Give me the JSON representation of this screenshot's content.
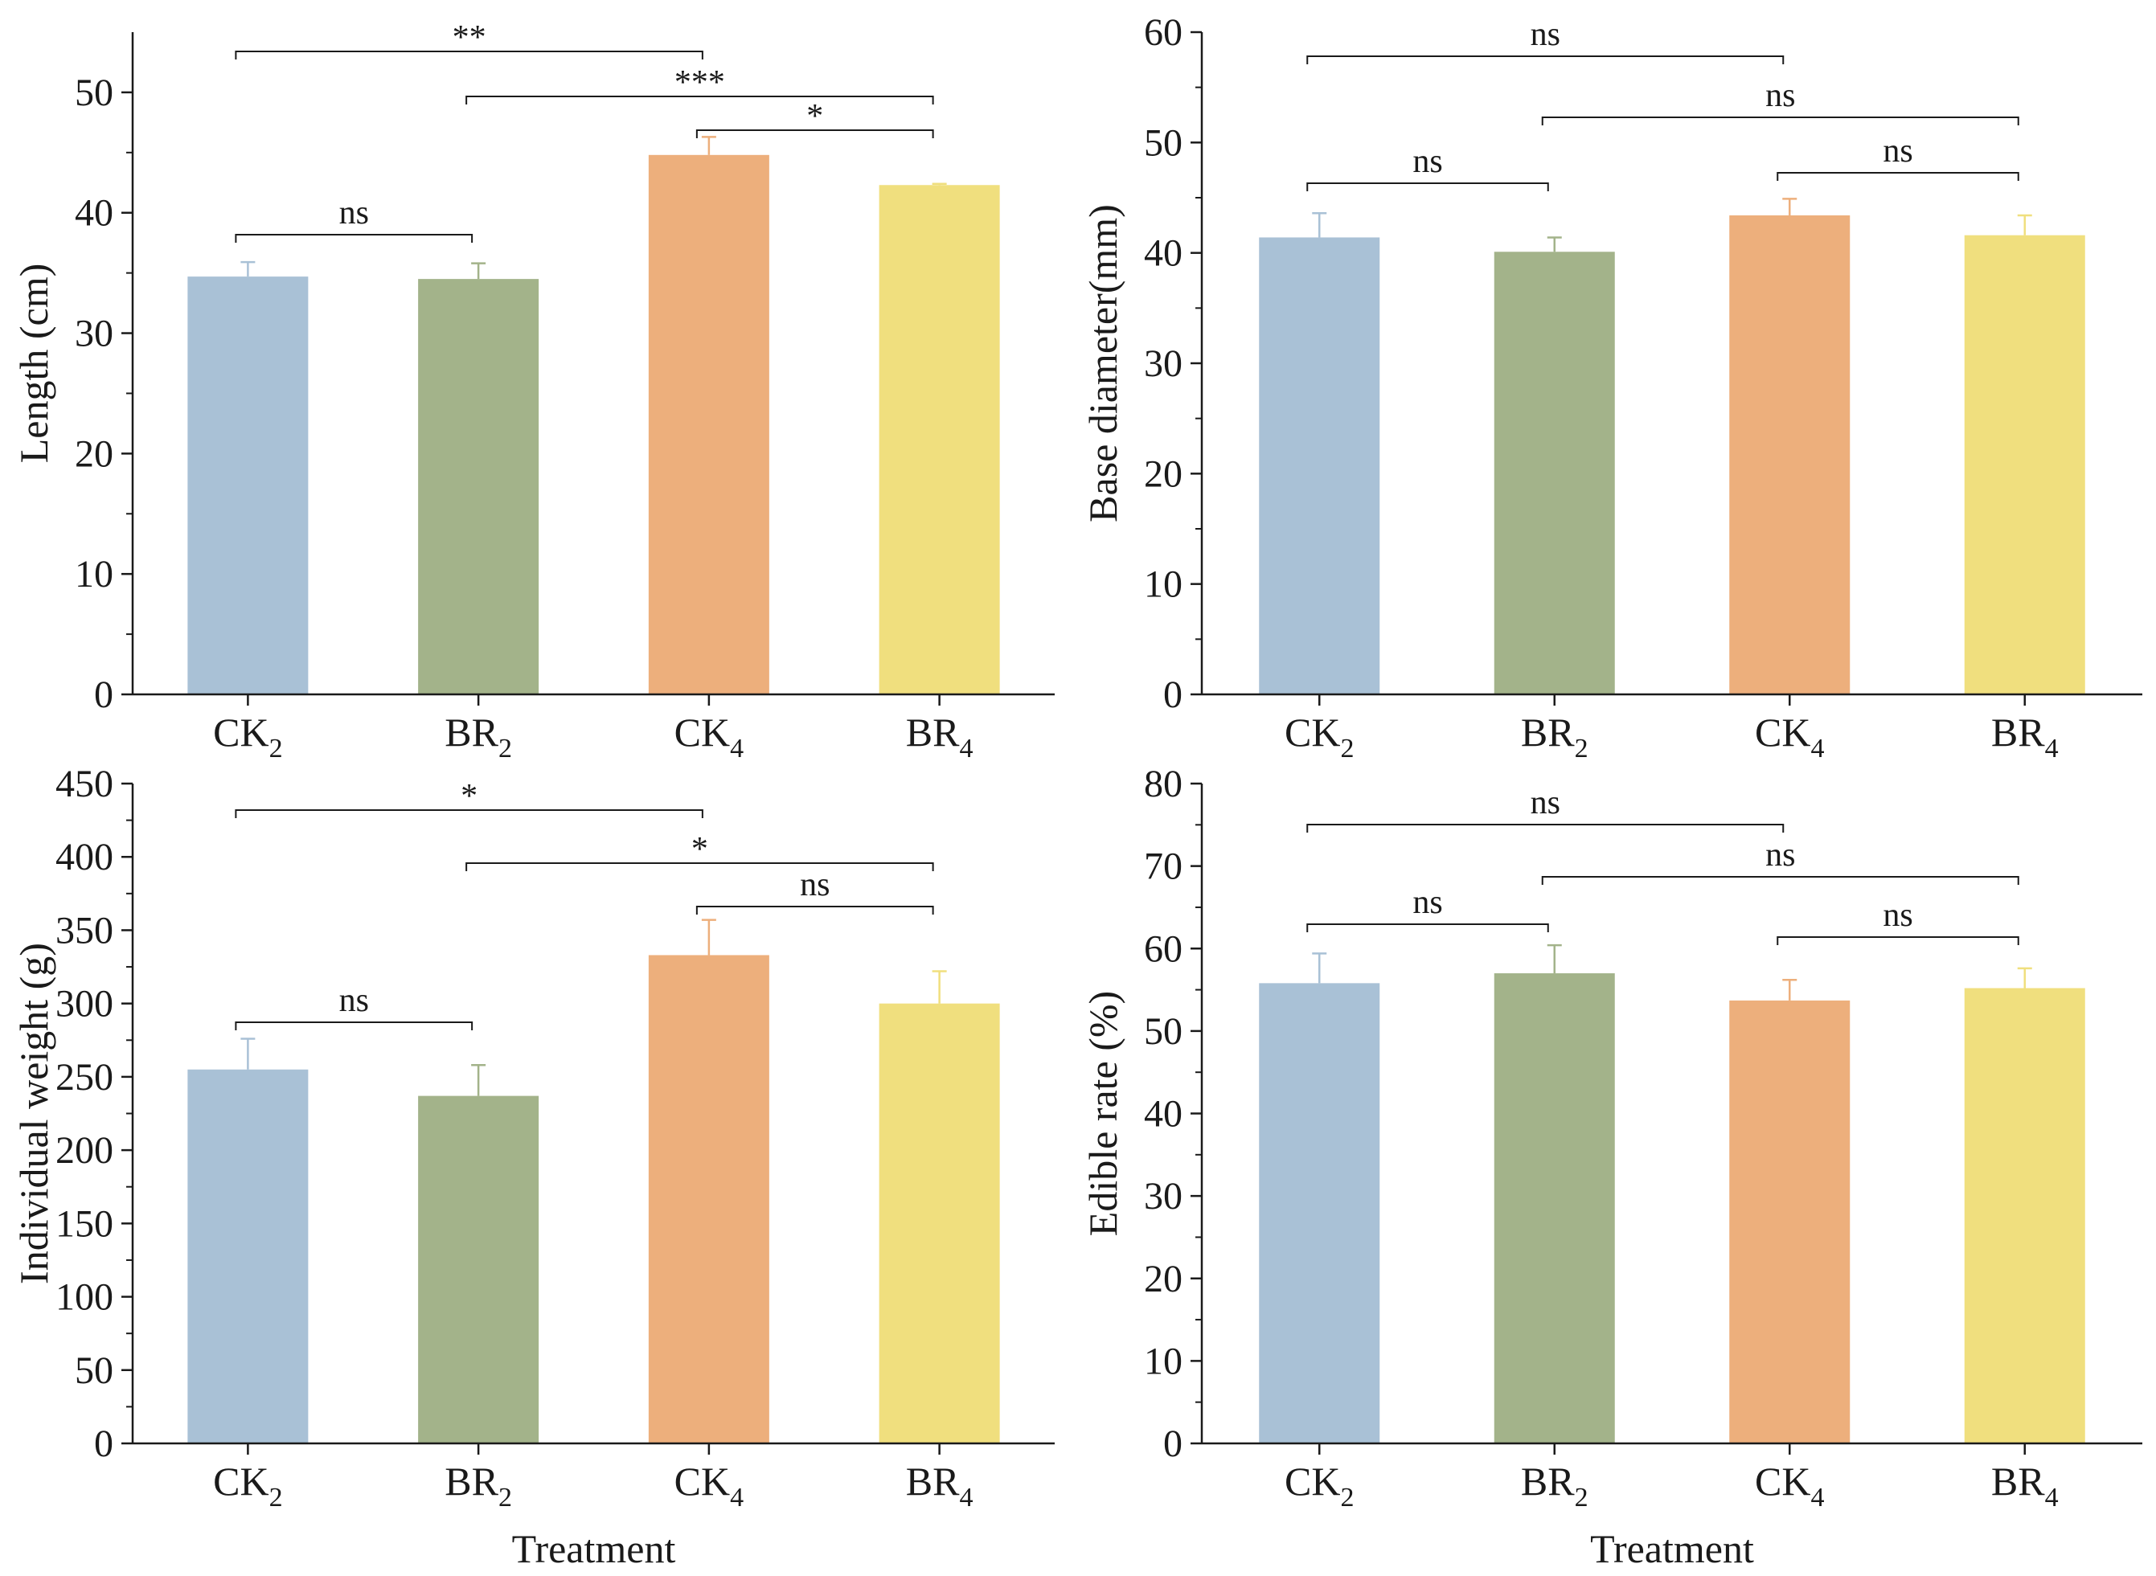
{
  "colors": {
    "CK2": "#a9c1d6",
    "BR2": "#a3b38a",
    "CK4": "#edaf7c",
    "BR4": "#f0df7e",
    "axis": "#1a1a1a"
  },
  "chart_data": [
    {
      "type": "bar",
      "categories": [
        "CK2",
        "BR2",
        "CK4",
        "BR4"
      ],
      "category_labels": [
        {
          "base": "CK",
          "sub": "2"
        },
        {
          "base": "BR",
          "sub": "2"
        },
        {
          "base": "CK",
          "sub": "4"
        },
        {
          "base": "BR",
          "sub": "4"
        }
      ],
      "values": [
        34.7,
        34.5,
        44.8,
        42.3
      ],
      "errors": [
        1.2,
        1.3,
        1.5,
        0.1
      ],
      "ylabel": "Length (cm)",
      "xlabel": "",
      "ylim": [
        0,
        55
      ],
      "yticks": [
        0,
        10,
        20,
        30,
        40,
        50
      ],
      "significance": [
        {
          "from": 0,
          "to": 2,
          "label": "**"
        },
        {
          "from": 1,
          "to": 3,
          "label": "***"
        },
        {
          "from": 2,
          "to": 3,
          "label": "*"
        },
        {
          "from": 0,
          "to": 1,
          "label": "ns"
        }
      ]
    },
    {
      "type": "bar",
      "categories": [
        "CK2",
        "BR2",
        "CK4",
        "BR4"
      ],
      "category_labels": [
        {
          "base": "CK",
          "sub": "2"
        },
        {
          "base": "BR",
          "sub": "2"
        },
        {
          "base": "CK",
          "sub": "4"
        },
        {
          "base": "BR",
          "sub": "4"
        }
      ],
      "values": [
        41.4,
        40.1,
        43.4,
        41.6
      ],
      "errors": [
        2.2,
        1.3,
        1.5,
        1.8
      ],
      "ylabel": "Base diameter(mm)",
      "xlabel": "",
      "ylim": [
        0,
        60
      ],
      "yticks": [
        0,
        10,
        20,
        30,
        40,
        50,
        60
      ],
      "significance": [
        {
          "from": 0,
          "to": 2,
          "label": "ns"
        },
        {
          "from": 1,
          "to": 3,
          "label": "ns"
        },
        {
          "from": 0,
          "to": 1,
          "label": "ns"
        },
        {
          "from": 2,
          "to": 3,
          "label": "ns"
        }
      ]
    },
    {
      "type": "bar",
      "categories": [
        "CK2",
        "BR2",
        "CK4",
        "BR4"
      ],
      "category_labels": [
        {
          "base": "CK",
          "sub": "2"
        },
        {
          "base": "BR",
          "sub": "2"
        },
        {
          "base": "CK",
          "sub": "4"
        },
        {
          "base": "BR",
          "sub": "4"
        }
      ],
      "values": [
        255,
        237,
        333,
        300
      ],
      "errors": [
        21,
        21,
        24,
        22
      ],
      "ylabel": "Individual weight (g)",
      "xlabel": "Treatment",
      "ylim": [
        0,
        450
      ],
      "yticks": [
        0,
        50,
        100,
        150,
        200,
        250,
        300,
        350,
        400,
        450
      ],
      "significance": [
        {
          "from": 0,
          "to": 2,
          "label": "*"
        },
        {
          "from": 1,
          "to": 3,
          "label": "*"
        },
        {
          "from": 2,
          "to": 3,
          "label": "ns"
        },
        {
          "from": 0,
          "to": 1,
          "label": "ns"
        }
      ]
    },
    {
      "type": "bar",
      "categories": [
        "CK2",
        "BR2",
        "CK4",
        "BR4"
      ],
      "category_labels": [
        {
          "base": "CK",
          "sub": "2"
        },
        {
          "base": "BR",
          "sub": "2"
        },
        {
          "base": "CK",
          "sub": "4"
        },
        {
          "base": "BR",
          "sub": "4"
        }
      ],
      "values": [
        55.8,
        57.0,
        53.7,
        55.2
      ],
      "errors": [
        3.6,
        3.4,
        2.5,
        2.4
      ],
      "ylabel": "Edible rate (%)",
      "xlabel": "Treatment",
      "ylim": [
        0,
        80
      ],
      "yticks": [
        0,
        10,
        20,
        30,
        40,
        50,
        60,
        70,
        80
      ],
      "significance": [
        {
          "from": 0,
          "to": 2,
          "label": "ns"
        },
        {
          "from": 1,
          "to": 3,
          "label": "ns"
        },
        {
          "from": 0,
          "to": 1,
          "label": "ns"
        },
        {
          "from": 2,
          "to": 3,
          "label": "ns"
        }
      ]
    }
  ]
}
